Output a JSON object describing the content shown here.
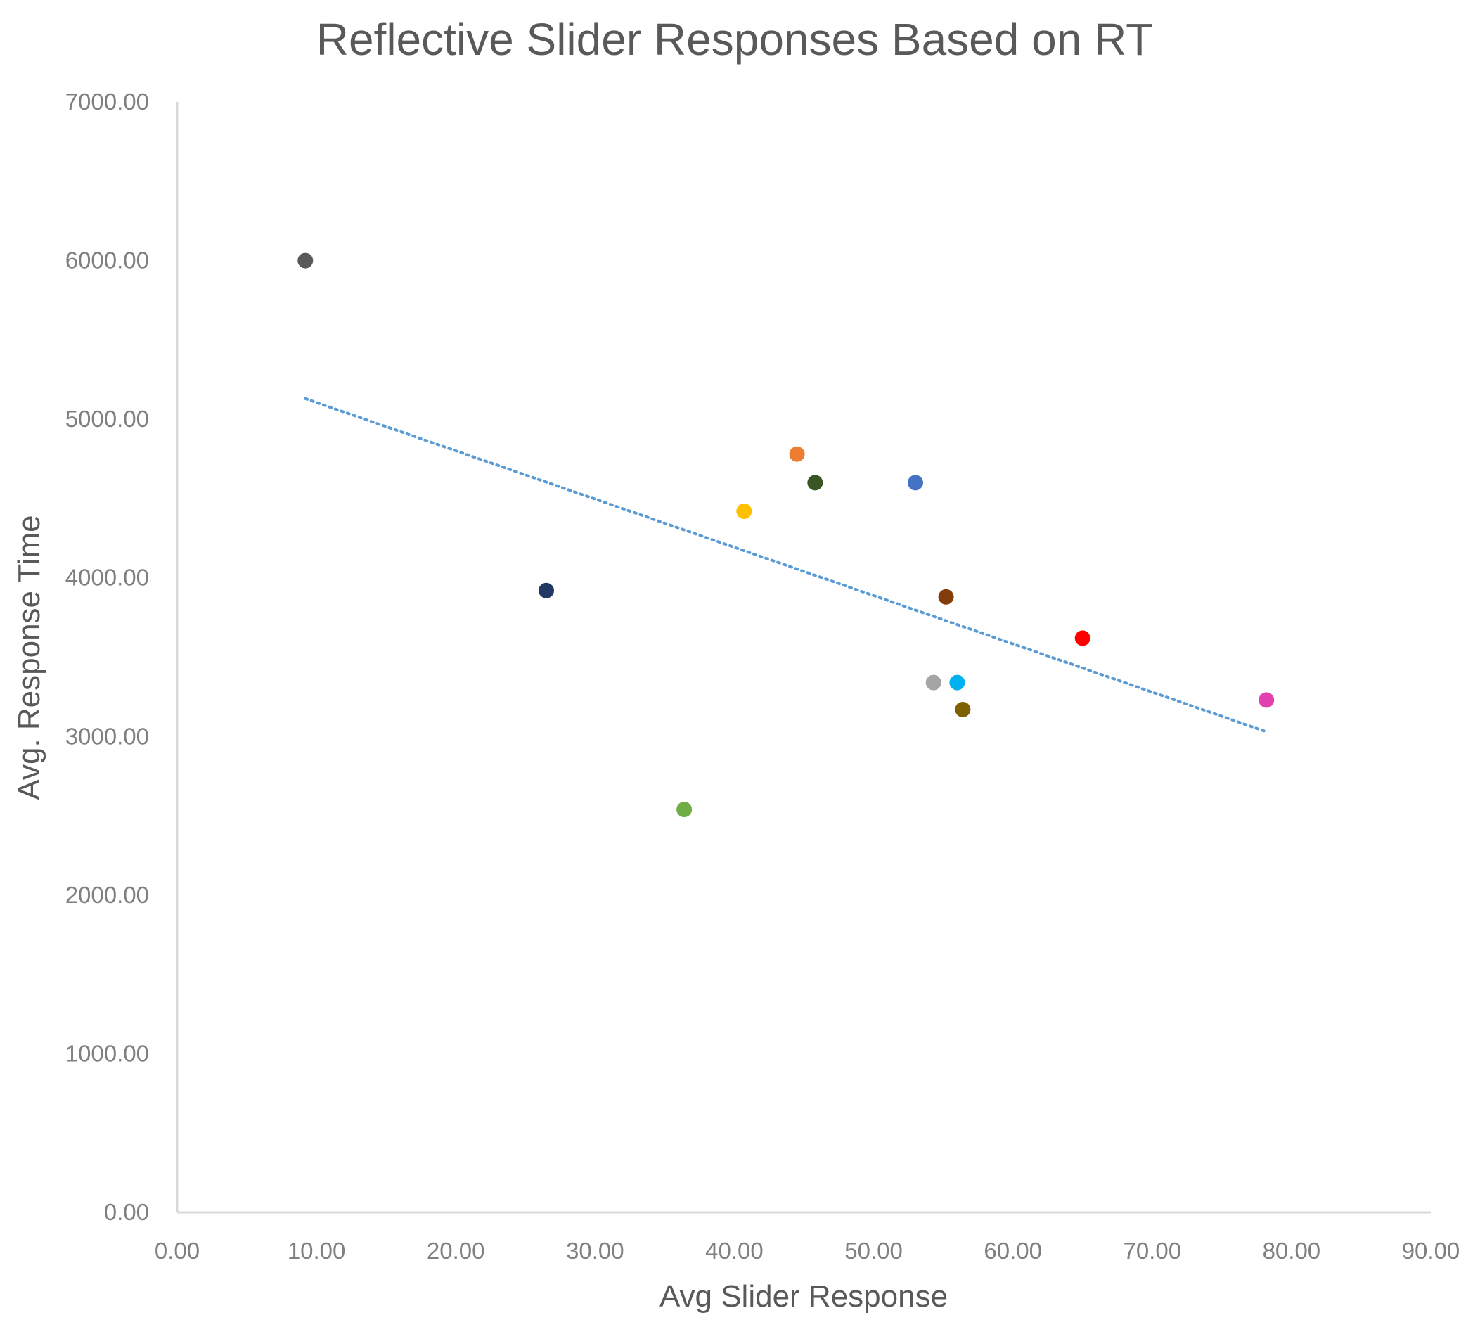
{
  "chart_data": {
    "type": "scatter",
    "title": "Reflective Slider Responses Based on RT",
    "xlabel": "Avg Slider Response",
    "ylabel": "Avg. Response Time",
    "xlim": [
      0,
      90
    ],
    "ylim": [
      0,
      7000
    ],
    "x_ticks": [
      "0.00",
      "10.00",
      "20.00",
      "30.00",
      "40.00",
      "50.00",
      "60.00",
      "70.00",
      "80.00",
      "90.00"
    ],
    "y_ticks": [
      "0.00",
      "1000.00",
      "2000.00",
      "3000.00",
      "4000.00",
      "5000.00",
      "6000.00",
      "7000.00"
    ],
    "grid": false,
    "legend": "none",
    "points": [
      {
        "x": 9.2,
        "y": 6000,
        "color": "#595959"
      },
      {
        "x": 26.5,
        "y": 3920,
        "color": "#203864"
      },
      {
        "x": 36.4,
        "y": 2540,
        "color": "#70ad47"
      },
      {
        "x": 40.7,
        "y": 4420,
        "color": "#ffc000"
      },
      {
        "x": 44.5,
        "y": 4780,
        "color": "#ed7d31"
      },
      {
        "x": 45.8,
        "y": 4600,
        "color": "#375623"
      },
      {
        "x": 53.0,
        "y": 4600,
        "color": "#4472c4"
      },
      {
        "x": 54.3,
        "y": 3340,
        "color": "#a5a5a5"
      },
      {
        "x": 55.2,
        "y": 3880,
        "color": "#843c0c"
      },
      {
        "x": 56.0,
        "y": 3340,
        "color": "#00b0f0"
      },
      {
        "x": 56.4,
        "y": 3170,
        "color": "#7f6000"
      },
      {
        "x": 65.0,
        "y": 3620,
        "color": "#ff0000"
      },
      {
        "x": 78.2,
        "y": 3230,
        "color": "#e040b0"
      }
    ],
    "trendline": {
      "type": "linear",
      "style": "dotted",
      "color": "#5b9bd5",
      "x_start": 9.2,
      "y_start": 5130,
      "x_end": 78.2,
      "y_end": 3030
    }
  }
}
